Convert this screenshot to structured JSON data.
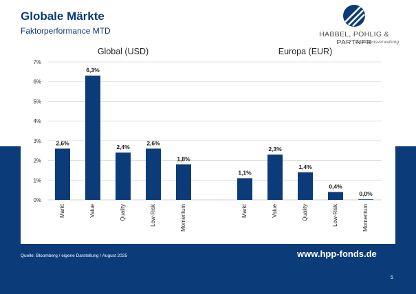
{
  "header": {
    "title": "Globale Märkte",
    "subtitle": "Faktorperformance MTD"
  },
  "logo": {
    "name": "HABBEL, POHLIG & PARTNER",
    "tagline": "Vermögensverwaltung"
  },
  "footer": {
    "source": "Quelle: Bloomberg / eigene Darstellung / August 2025",
    "url": "www.hpp-fonds.de",
    "page_number": "5"
  },
  "colors": {
    "navy": "#0b3b78",
    "bar": "#0b3b78",
    "grid": "#d9d9d9"
  },
  "chart_data": {
    "type": "bar",
    "ylim": [
      0,
      7
    ],
    "yticks": [
      "0%",
      "1%",
      "2%",
      "3%",
      "4%",
      "5%",
      "6%",
      "7%"
    ],
    "grid": true,
    "groups": [
      {
        "name": "Global (USD)",
        "categories": [
          "Markt",
          "Value",
          "Quality",
          "Low-Risk",
          "Momentum"
        ],
        "values": [
          2.6,
          6.3,
          2.4,
          2.6,
          1.8
        ],
        "labels": [
          "2,6%",
          "6,3%",
          "2,4%",
          "2,6%",
          "1,8%"
        ]
      },
      {
        "name": "Europa (EUR)",
        "categories": [
          "Markt",
          "Value",
          "Quality",
          "Low-Risk",
          "Momentum"
        ],
        "values": [
          1.1,
          2.3,
          1.4,
          0.4,
          0.0
        ],
        "labels": [
          "1,1%",
          "2,3%",
          "1,4%",
          "0,4%",
          "0,0%"
        ]
      }
    ]
  }
}
